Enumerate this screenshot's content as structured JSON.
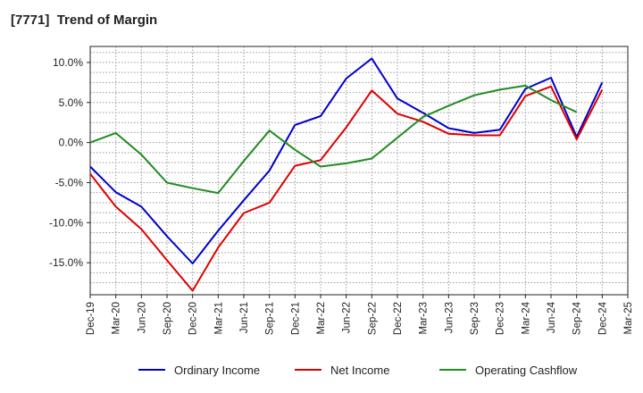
{
  "chart_data": {
    "type": "line",
    "title": "[7771]  Trend of Margin",
    "xlabel": "",
    "ylabel": "",
    "ylim": [
      -19,
      12
    ],
    "yticks": [
      10,
      5,
      0,
      -5,
      -10,
      -15
    ],
    "ytick_labels": [
      "10.0%",
      "5.0%",
      "0.0%",
      "-5.0%",
      "-10.0%",
      "-15.0%"
    ],
    "grid": true,
    "legend_position": "bottom",
    "categories": [
      "Dec-19",
      "Mar-20",
      "Jun-20",
      "Sep-20",
      "Dec-20",
      "Mar-21",
      "Jun-21",
      "Sep-21",
      "Dec-21",
      "Mar-22",
      "Jun-22",
      "Sep-22",
      "Dec-22",
      "Mar-23",
      "Jun-23",
      "Sep-23",
      "Dec-23",
      "Mar-24",
      "Jun-24",
      "Sep-24",
      "Dec-24",
      "Mar-25"
    ],
    "series": [
      {
        "name": "Ordinary Income",
        "color": "#0000cc",
        "values": [
          -3.0,
          -6.2,
          -8.0,
          -11.7,
          -15.1,
          -11.0,
          -7.2,
          -3.5,
          2.2,
          3.3,
          8.0,
          10.5,
          5.5,
          3.7,
          1.8,
          1.2,
          1.6,
          6.7,
          8.1,
          0.7,
          7.5,
          null
        ]
      },
      {
        "name": "Net Income",
        "color": "#dd0000",
        "values": [
          -3.9,
          -8.0,
          -10.8,
          -14.7,
          -18.5,
          -13.1,
          -8.8,
          -7.5,
          -2.9,
          -2.2,
          1.9,
          6.5,
          3.6,
          2.6,
          1.1,
          0.9,
          0.9,
          5.8,
          7.0,
          0.4,
          6.6,
          null
        ]
      },
      {
        "name": "Operating Cashflow",
        "color": "#228b22",
        "values": [
          0.0,
          1.2,
          -1.5,
          -5.0,
          -5.7,
          -6.3,
          -2.3,
          1.5,
          -0.9,
          -3.0,
          -2.6,
          -2.0,
          0.6,
          3.2,
          4.6,
          5.9,
          6.6,
          7.1,
          5.3,
          3.8,
          null,
          null
        ]
      }
    ]
  }
}
